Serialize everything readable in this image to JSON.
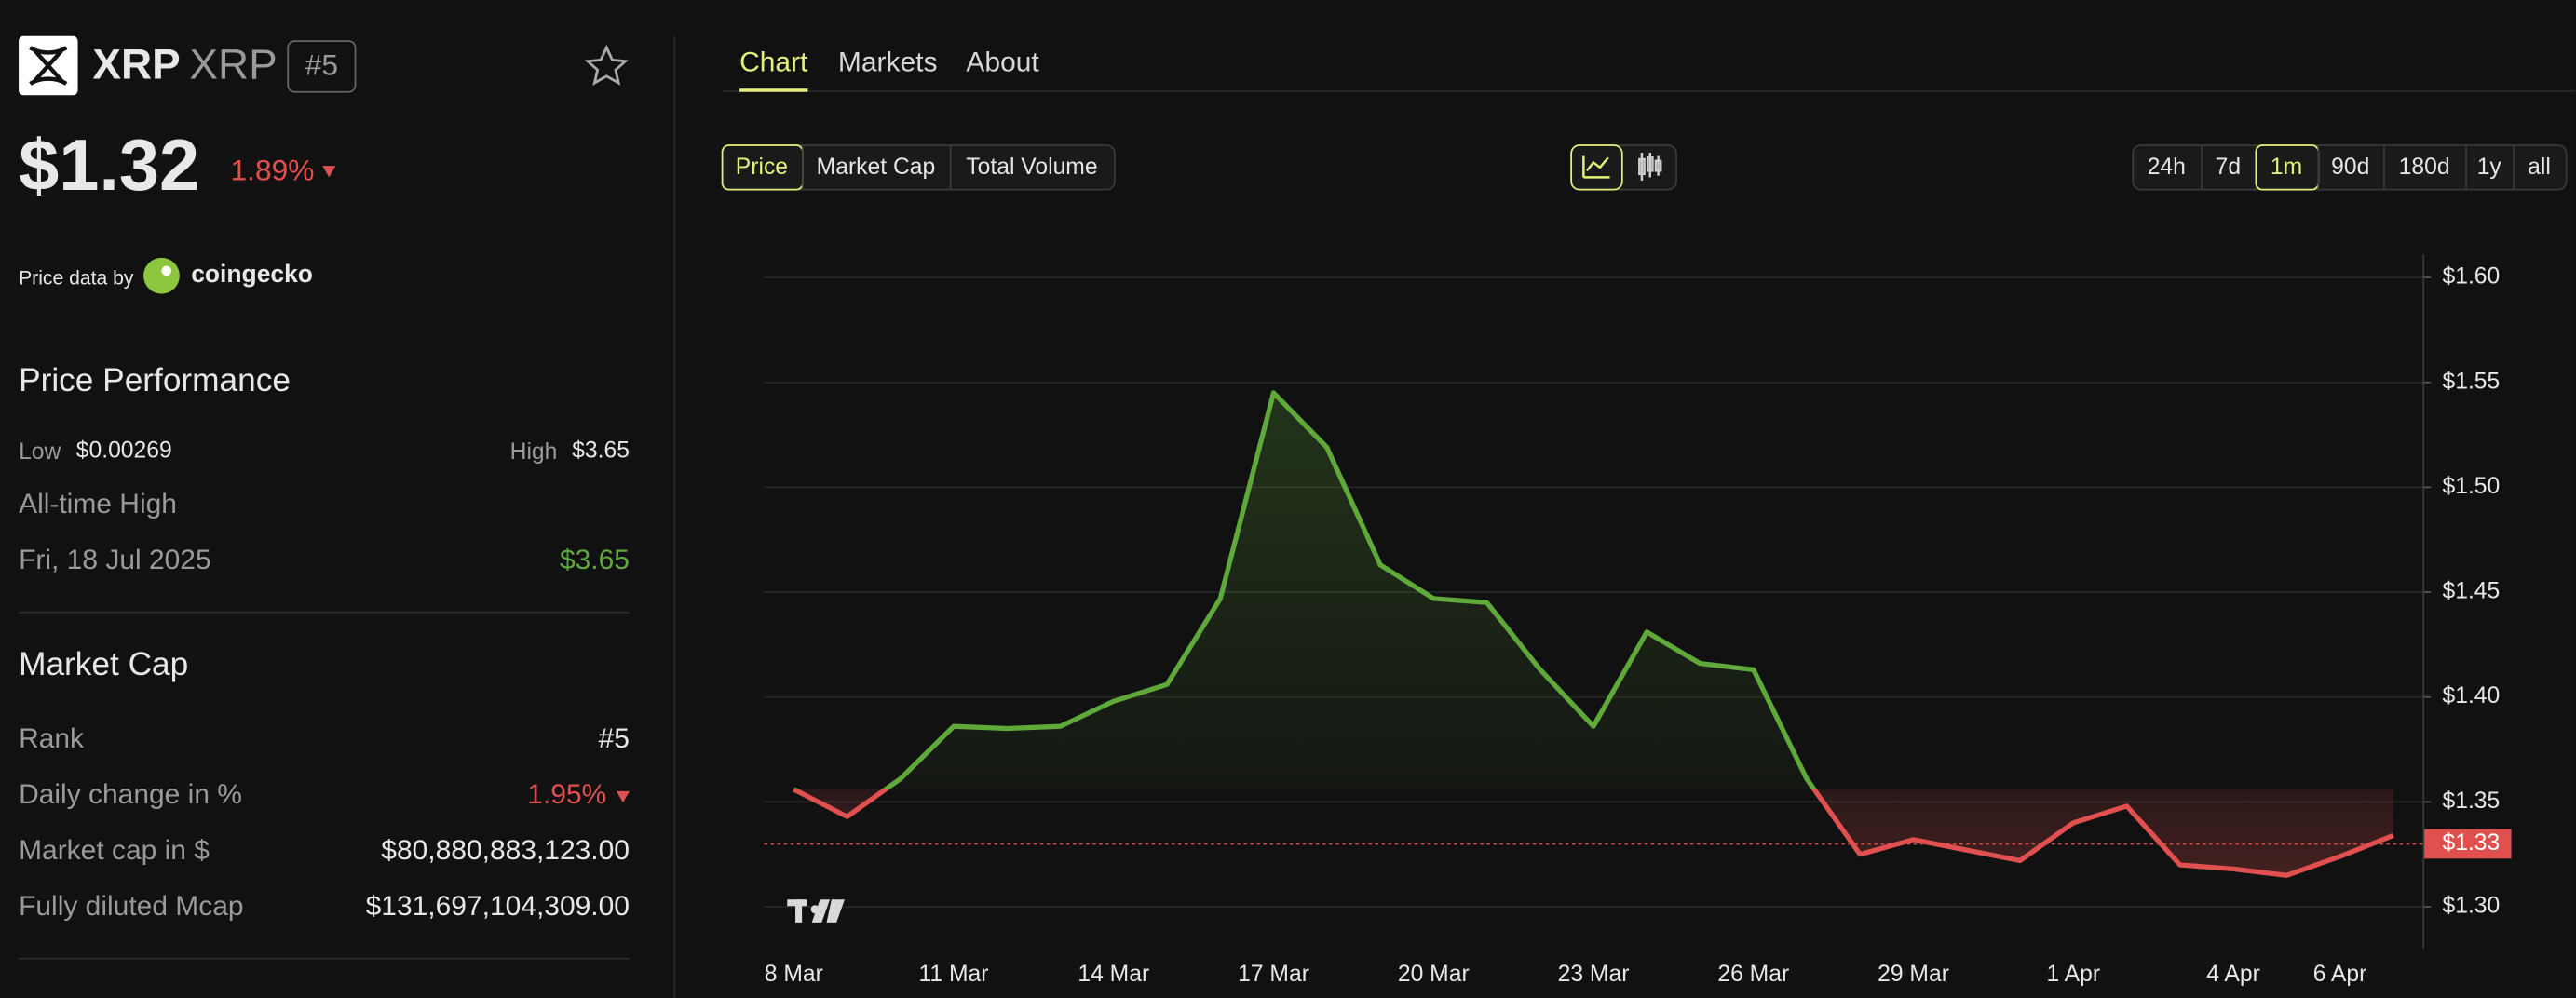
{
  "asset": {
    "name": "XRP",
    "symbol": "XRP",
    "rank": "#5",
    "price": "$1.32",
    "change": "1.89%"
  },
  "source": {
    "prefix": "Price data by",
    "name": "coingecko"
  },
  "performance": {
    "title": "Price Performance",
    "low_label": "Low",
    "low": "$0.00269",
    "high_label": "High",
    "high": "$3.65",
    "ath_label": "All-time High",
    "ath_date": "Fri, 18 Jul 2025",
    "ath_value": "$3.65"
  },
  "market_cap": {
    "title": "Market Cap",
    "rows": [
      [
        "Rank",
        "#5"
      ],
      [
        "Daily change in %",
        "1.95%"
      ],
      [
        "Market cap in $",
        "$80,880,883,123.00"
      ],
      [
        "Fully diluted Mcap",
        "$131,697,104,309.00"
      ]
    ]
  },
  "tabs": [
    "Chart",
    "Markets",
    "About"
  ],
  "metrics": [
    "Price",
    "Market Cap",
    "Total Volume"
  ],
  "ranges": [
    "24h",
    "7d",
    "1m",
    "90d",
    "180d",
    "1y",
    "all"
  ],
  "active": {
    "tab": 0,
    "metric": 0,
    "range": 2
  },
  "chart_data": {
    "type": "line",
    "categories": [
      "8 Mar",
      null,
      null,
      "11 Mar",
      null,
      null,
      "14 Mar",
      null,
      null,
      "17 Mar",
      null,
      null,
      "20 Mar",
      null,
      null,
      "23 Mar",
      null,
      null,
      "26 Mar",
      null,
      null,
      "29 Mar",
      null,
      null,
      "1 Apr",
      null,
      null,
      "4 Apr",
      null,
      "6 Apr",
      null
    ],
    "values": [
      1.356,
      1.343,
      1.361,
      1.386,
      1.385,
      1.386,
      1.398,
      1.406,
      1.447,
      1.545,
      1.519,
      1.463,
      1.447,
      1.445,
      1.413,
      1.386,
      1.431,
      1.416,
      1.413,
      1.361,
      1.325,
      1.332,
      1.327,
      1.322,
      1.34,
      1.348,
      1.32,
      1.318,
      1.315,
      1.324,
      1.334
    ],
    "color": "#5fa83a",
    "down_color": "#e0504e",
    "ylim": [
      1.28,
      1.611
    ],
    "yticks": [
      {
        "value": 1.3,
        "label": "$1.30"
      },
      {
        "value": 1.35,
        "label": "$1.35"
      },
      {
        "value": 1.4,
        "label": "$1.40"
      },
      {
        "value": 1.45,
        "label": "$1.45"
      },
      {
        "value": 1.5,
        "label": "$1.50"
      },
      {
        "value": 1.55,
        "label": "$1.55"
      },
      {
        "value": 1.6,
        "label": "$1.60"
      }
    ],
    "grid": true,
    "current": {
      "value": 1.33,
      "label": "$1.33"
    }
  }
}
